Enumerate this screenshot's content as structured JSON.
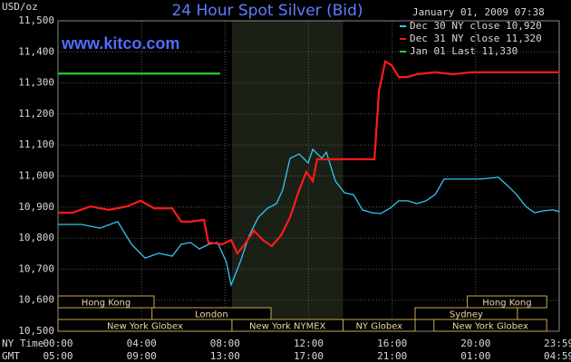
{
  "chart_data": {
    "type": "line",
    "title": "24 Hour Spot Silver (Bid)",
    "date": "January 01, 2009 07:38",
    "watermark": "www.kitco.com",
    "y_label": "USD/oz",
    "x_row_labels": [
      "NY Time",
      "GMT"
    ],
    "xlim": [
      0,
      24
    ],
    "ylim": [
      10500,
      11500
    ],
    "grid": true,
    "yticks": [
      {
        "value": 10500,
        "label": "10,500"
      },
      {
        "value": 10600,
        "label": "10,600"
      },
      {
        "value": 10700,
        "label": "10,700"
      },
      {
        "value": 10800,
        "label": "10,800"
      },
      {
        "value": 10900,
        "label": "10,900"
      },
      {
        "value": 11000,
        "label": "11,000"
      },
      {
        "value": 11100,
        "label": "11,100"
      },
      {
        "value": 11200,
        "label": "11,200"
      },
      {
        "value": 11300,
        "label": "11,300"
      },
      {
        "value": 11400,
        "label": "11,400"
      },
      {
        "value": 11500,
        "label": "11,500"
      }
    ],
    "xticks": [
      {
        "value": 0,
        "label": "00:00"
      },
      {
        "value": 4,
        "label": "04:00"
      },
      {
        "value": 8,
        "label": "08:00"
      },
      {
        "value": 12,
        "label": "12:00"
      },
      {
        "value": 16,
        "label": "16:00"
      },
      {
        "value": 20,
        "label": "20:00"
      },
      {
        "value": 23.983,
        "label": "23:59"
      }
    ],
    "gmt_ticks": [
      {
        "value": 0,
        "label": "05:00"
      },
      {
        "value": 4,
        "label": "09:00"
      },
      {
        "value": 8,
        "label": "13:00"
      },
      {
        "value": 12,
        "label": "17:00"
      },
      {
        "value": 16,
        "label": "21:00"
      },
      {
        "value": 20,
        "label": "01:00"
      },
      {
        "value": 23.983,
        "label": "04:59"
      }
    ],
    "shaded_range": [
      8.33,
      13.65
    ],
    "session_rows": [
      [
        {
          "label": "Hong Kong",
          "start": 0,
          "end": 4.6
        },
        {
          "label": "Hong Kong",
          "start": 19.6,
          "end": 23.4
        }
      ],
      [
        {
          "label": "London",
          "start": 4.5,
          "end": 10.2
        },
        {
          "label": "Sydney",
          "start": 17.1,
          "end": 22.0
        }
      ],
      [
        {
          "label": "New York Globex",
          "start": 0,
          "end": 8.33
        },
        {
          "label": "New York NYMEX",
          "start": 8.33,
          "end": 13.65
        },
        {
          "label": "NY Globex",
          "start": 13.65,
          "end": 17.1
        },
        {
          "label": "New York Globex",
          "start": 18.0,
          "end": 23.4
        }
      ]
    ],
    "series": [
      {
        "name": "Dec 30 NY close 10,920",
        "color": "#33c8f0",
        "x": [
          0,
          1.13,
          2,
          2.86,
          3.52,
          4.17,
          4.82,
          5.47,
          5.9,
          6.34,
          6.77,
          7.2,
          7.64,
          8.07,
          8.29,
          8.72,
          9.16,
          9.59,
          10.03,
          10.46,
          10.76,
          11.11,
          11.55,
          11.98,
          12.2,
          12.63,
          12.85,
          13.28,
          13.72,
          14.15,
          14.58,
          15.02,
          15.45,
          15.89,
          16.32,
          16.75,
          17.19,
          17.62,
          18.06,
          18.49,
          19.36,
          20.23,
          21.09,
          21.53,
          21.96,
          22.4,
          22.83,
          23.26,
          23.7,
          24
        ],
        "values": [
          10844,
          10844,
          10832,
          10853,
          10780,
          10736,
          10751,
          10742,
          10780,
          10786,
          10765,
          10780,
          10786,
          10722,
          10649,
          10722,
          10809,
          10867,
          10896,
          10911,
          10955,
          11057,
          11071,
          11042,
          11086,
          11057,
          11077,
          10984,
          10946,
          10940,
          10891,
          10882,
          10879,
          10896,
          10920,
          10920,
          10911,
          10920,
          10940,
          10990,
          10990,
          10990,
          10996,
          10969,
          10940,
          10902,
          10882,
          10888,
          10891,
          10885
        ]
      },
      {
        "name": "Dec 31 NY close 11,320",
        "color": "#ff1a1a",
        "x": [
          0,
          0.69,
          1.56,
          2.43,
          3.3,
          3.95,
          4.6,
          5.47,
          5.9,
          6.34,
          6.99,
          7.2,
          7.86,
          8.29,
          8.59,
          8.94,
          9.38,
          9.81,
          10.24,
          10.68,
          11.11,
          11.55,
          11.89,
          12.2,
          12.41,
          12.85,
          15.15,
          15.37,
          15.67,
          15.97,
          16.32,
          16.75,
          17.19,
          18.06,
          18.92,
          19.79,
          21.53,
          24
        ],
        "values": [
          10882,
          10882,
          10902,
          10891,
          10902,
          10920,
          10896,
          10896,
          10853,
          10853,
          10859,
          10786,
          10780,
          10794,
          10751,
          10780,
          10824,
          10794,
          10774,
          10809,
          10867,
          10955,
          11013,
          10984,
          11054,
          11054,
          11054,
          11275,
          11369,
          11357,
          11319,
          11319,
          11328,
          11334,
          11328,
          11334,
          11334,
          11334
        ]
      },
      {
        "name": "Jan 01 Last 11,330",
        "color": "#22dd22",
        "x": [
          0,
          7.77
        ],
        "values": [
          11330,
          11330
        ]
      }
    ]
  }
}
